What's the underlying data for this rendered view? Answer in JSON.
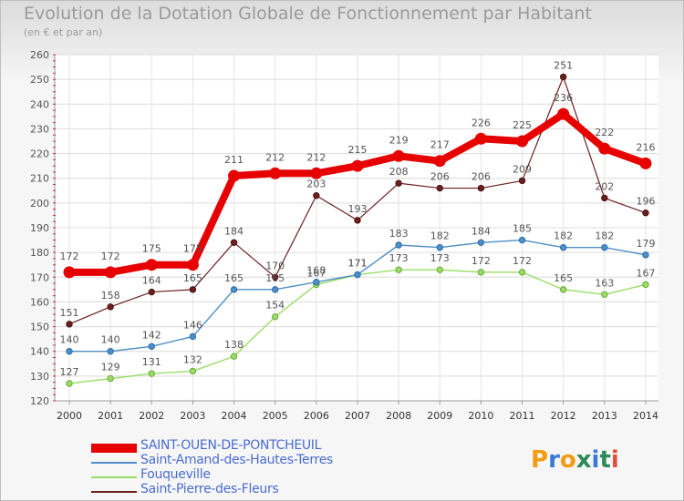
{
  "title": "Evolution de la Dotation Globale de Fonctionnement par Habitant",
  "subtitle": "(en € et par an)",
  "logo": {
    "text": "Proxiti",
    "letters": [
      "P",
      "r",
      "o",
      "x",
      "i",
      "t",
      "i"
    ],
    "colors": [
      "#f39c12",
      "#3a7bd5",
      "#f39c12",
      "#2e8b57",
      "#3a7bd5",
      "#2e8b57",
      "#e74c3c"
    ]
  },
  "chart_data": {
    "type": "line",
    "title": "Evolution de la Dotation Globale de Fonctionnement par Habitant",
    "subtitle": "(en € et par an)",
    "xlabel": "",
    "ylabel": "",
    "x": [
      "2000",
      "2001",
      "2002",
      "2003",
      "2004",
      "2005",
      "2006",
      "2007",
      "2008",
      "2009",
      "2010",
      "2011",
      "2012",
      "2013",
      "2014"
    ],
    "ylim": [
      120,
      260
    ],
    "yticks": [
      120,
      130,
      140,
      150,
      160,
      170,
      180,
      190,
      200,
      210,
      220,
      230,
      240,
      250,
      260
    ],
    "grid": true,
    "legend_position": "bottom",
    "series": [
      {
        "name": "SAINT-OUEN-DE-PONTCHEUIL",
        "color": "#e60000",
        "values": [
          172,
          172,
          175,
          175,
          211,
          212,
          212,
          215,
          219,
          217,
          226,
          225,
          236,
          222,
          216
        ]
      },
      {
        "name": "Saint-Amand-des-Hautes-Terres",
        "color": "#4f8fc6",
        "values": [
          140,
          140,
          142,
          146,
          165,
          165,
          168,
          171,
          183,
          182,
          184,
          185,
          182,
          182,
          179
        ]
      },
      {
        "name": "Fouqueville",
        "color": "#99dd66",
        "values": [
          127,
          129,
          131,
          132,
          138,
          154,
          167,
          171,
          173,
          173,
          172,
          172,
          165,
          163,
          167
        ]
      },
      {
        "name": "Saint-Pierre-des-Fleurs",
        "color": "#6b1f1f",
        "values": [
          151,
          158,
          164,
          165,
          184,
          170,
          203,
          193,
          208,
          206,
          206,
          209,
          251,
          202,
          196
        ]
      }
    ]
  }
}
